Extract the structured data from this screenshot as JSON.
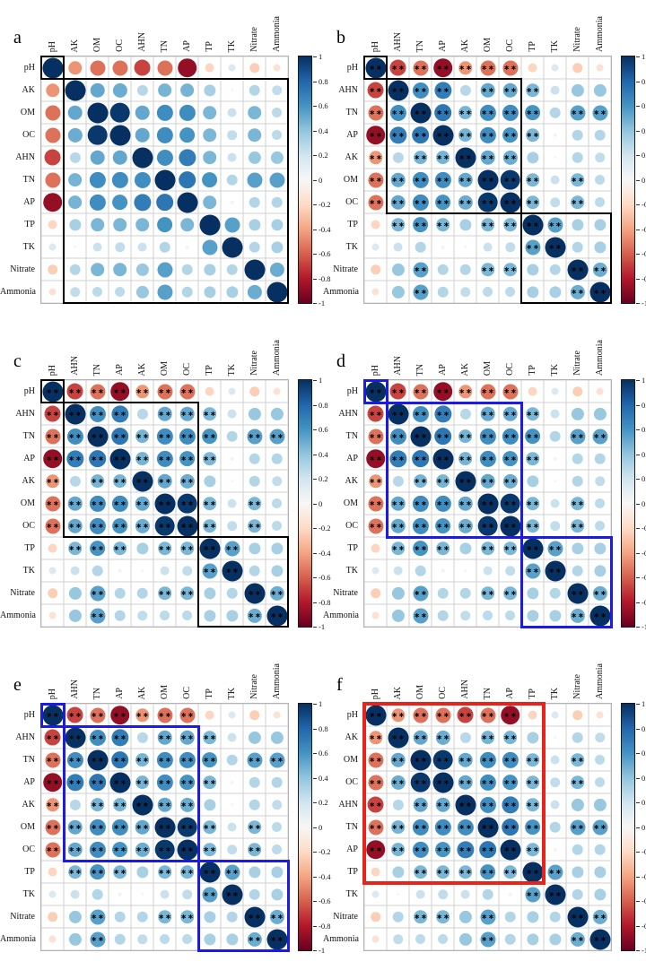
{
  "figure": {
    "background": "#ffffff",
    "grid_line_color": "#d0d0d0",
    "grid_border_color": "#b3b3b3",
    "star_color": "#000000",
    "star_glyph": "∗∗",
    "rdbu_palette": [
      "#67001f",
      "#b2182b",
      "#d6604d",
      "#f4a582",
      "#fddbc7",
      "#f7f7f7",
      "#d1e5f0",
      "#92c5de",
      "#4393c3",
      "#2166ac",
      "#053061"
    ],
    "rect_colors": {
      "black": "#000000",
      "blue": "#1b1be4",
      "red": "#e8231a"
    },
    "colorbar_tick_labels": [
      "1",
      "0.8",
      "0.6",
      "0.4",
      "0.2",
      "0",
      "-0.2",
      "-0.4",
      "-0.6",
      "-0.8",
      "-1"
    ]
  },
  "chart_data": {
    "type": "heatmap",
    "subtype": "correlation-matrix-panels",
    "variables": [
      "pH",
      "AK",
      "OM",
      "OC",
      "AHN",
      "TN",
      "AP",
      "TP",
      "TK",
      "Nitrate",
      "Ammonia"
    ],
    "matrix": [
      [
        1.0,
        -0.45,
        -0.55,
        -0.55,
        -0.68,
        -0.55,
        -0.88,
        -0.22,
        0.15,
        -0.25,
        -0.15
      ],
      [
        -0.45,
        1.0,
        0.52,
        0.5,
        0.28,
        0.47,
        0.47,
        0.33,
        -0.03,
        0.3,
        0.25
      ],
      [
        -0.55,
        0.52,
        1.0,
        0.97,
        0.52,
        0.63,
        0.63,
        0.46,
        0.22,
        0.46,
        0.27
      ],
      [
        -0.55,
        0.5,
        0.97,
        1.0,
        0.52,
        0.63,
        0.6,
        0.46,
        0.25,
        0.46,
        0.27
      ],
      [
        -0.68,
        0.28,
        0.52,
        0.52,
        1.0,
        0.62,
        0.7,
        0.46,
        0.22,
        0.38,
        0.38
      ],
      [
        -0.55,
        0.47,
        0.63,
        0.63,
        0.62,
        1.0,
        0.73,
        0.6,
        0.3,
        0.55,
        0.55
      ],
      [
        -0.88,
        0.47,
        0.63,
        0.6,
        0.7,
        0.73,
        1.0,
        0.46,
        -0.04,
        0.3,
        0.3
      ],
      [
        -0.22,
        0.33,
        0.46,
        0.46,
        0.46,
        0.6,
        0.46,
        1.0,
        0.55,
        0.33,
        0.33
      ],
      [
        0.15,
        -0.03,
        0.22,
        0.25,
        0.22,
        0.3,
        -0.04,
        0.55,
        1.0,
        0.3,
        0.33
      ],
      [
        -0.25,
        0.3,
        0.46,
        0.46,
        0.38,
        0.55,
        0.3,
        0.33,
        0.3,
        1.0,
        0.5
      ],
      [
        -0.15,
        0.25,
        0.27,
        0.27,
        0.38,
        0.55,
        0.3,
        0.33,
        0.33,
        0.5,
        1.0
      ]
    ],
    "significant_pairs": [
      [
        "pH",
        "AK"
      ],
      [
        "pH",
        "OM"
      ],
      [
        "pH",
        "OC"
      ],
      [
        "pH",
        "AHN"
      ],
      [
        "pH",
        "TN"
      ],
      [
        "pH",
        "AP"
      ],
      [
        "AK",
        "OM"
      ],
      [
        "AK",
        "OC"
      ],
      [
        "AK",
        "TN"
      ],
      [
        "AK",
        "AP"
      ],
      [
        "OM",
        "OC"
      ],
      [
        "OM",
        "AHN"
      ],
      [
        "OM",
        "TN"
      ],
      [
        "OM",
        "AP"
      ],
      [
        "OM",
        "TP"
      ],
      [
        "OM",
        "Nitrate"
      ],
      [
        "OC",
        "AHN"
      ],
      [
        "OC",
        "TN"
      ],
      [
        "OC",
        "AP"
      ],
      [
        "OC",
        "TP"
      ],
      [
        "OC",
        "Nitrate"
      ],
      [
        "AHN",
        "TN"
      ],
      [
        "AHN",
        "AP"
      ],
      [
        "AHN",
        "TP"
      ],
      [
        "TN",
        "AP"
      ],
      [
        "TN",
        "TP"
      ],
      [
        "TN",
        "Nitrate"
      ],
      [
        "TN",
        "Ammonia"
      ],
      [
        "AP",
        "TP"
      ],
      [
        "TP",
        "TK"
      ],
      [
        "Nitrate",
        "Ammonia"
      ]
    ],
    "colorbar": {
      "min": -1,
      "max": 1,
      "ticks": [
        1,
        0.8,
        0.6,
        0.4,
        0.2,
        0,
        -0.2,
        -0.4,
        -0.6,
        -0.8,
        -1
      ]
    },
    "panels": [
      {
        "letter": "a",
        "order": [
          "pH",
          "AK",
          "OM",
          "OC",
          "AHN",
          "TN",
          "AP",
          "TP",
          "TK",
          "Nitrate",
          "Ammonia"
        ],
        "show_stars": false,
        "rect_color": "black",
        "rect_width": 2,
        "rects": [
          [
            0,
            0,
            0,
            0
          ],
          [
            1,
            1,
            10,
            10
          ]
        ]
      },
      {
        "letter": "b",
        "order": [
          "pH",
          "AHN",
          "TN",
          "AP",
          "AK",
          "OM",
          "OC",
          "TP",
          "TK",
          "Nitrate",
          "Ammonia"
        ],
        "show_stars": true,
        "rect_color": "black",
        "rect_width": 2,
        "rects": [
          [
            0,
            0,
            0,
            0
          ],
          [
            1,
            1,
            6,
            6
          ],
          [
            7,
            7,
            10,
            10
          ]
        ]
      },
      {
        "letter": "c",
        "order": [
          "pH",
          "AHN",
          "TN",
          "AP",
          "AK",
          "OM",
          "OC",
          "TP",
          "TK",
          "Nitrate",
          "Ammonia"
        ],
        "show_stars": true,
        "rect_color": "black",
        "rect_width": 2,
        "rects": [
          [
            0,
            0,
            0,
            0
          ],
          [
            1,
            1,
            6,
            6
          ],
          [
            7,
            7,
            10,
            10
          ]
        ]
      },
      {
        "letter": "d",
        "order": [
          "pH",
          "AHN",
          "TN",
          "AP",
          "AK",
          "OM",
          "OC",
          "TP",
          "TK",
          "Nitrate",
          "Ammonia"
        ],
        "show_stars": true,
        "rect_color": "blue",
        "rect_width": 3,
        "rects": [
          [
            0,
            0,
            0,
            0
          ],
          [
            1,
            1,
            6,
            6
          ],
          [
            7,
            7,
            10,
            10
          ]
        ]
      },
      {
        "letter": "e",
        "order": [
          "pH",
          "AHN",
          "TN",
          "AP",
          "AK",
          "OM",
          "OC",
          "TP",
          "TK",
          "Nitrate",
          "Ammonia"
        ],
        "show_stars": true,
        "rect_color": "blue",
        "rect_width": 3,
        "rects": [
          [
            0,
            0,
            0,
            0
          ],
          [
            1,
            1,
            6,
            6
          ],
          [
            7,
            7,
            10,
            10
          ]
        ]
      },
      {
        "letter": "f",
        "order": [
          "pH",
          "AK",
          "OM",
          "OC",
          "AHN",
          "TN",
          "AP",
          "TP",
          "TK",
          "Nitrate",
          "Ammonia"
        ],
        "show_stars": true,
        "rect_color": "red",
        "rect_width": 4,
        "rects": [
          [
            0,
            0,
            7,
            7
          ]
        ]
      }
    ]
  }
}
